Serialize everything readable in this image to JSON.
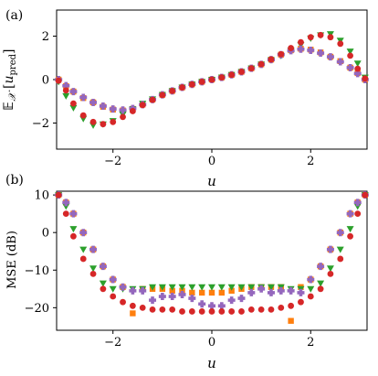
{
  "chart_data": [
    {
      "panel_label": "(a)",
      "type": "scatter",
      "xlabel": "u",
      "ylabel": "E_X [u_pred]",
      "xlim": [
        -3.14,
        3.14
      ],
      "ylim": [
        -3.2,
        3.2
      ],
      "xticks": [
        -2,
        0,
        2
      ],
      "xtick_labels": [
        "−2",
        "0",
        "2"
      ],
      "yticks": [
        -2,
        0,
        2
      ],
      "ytick_labels": [
        "−2",
        "0",
        "2"
      ],
      "grid": false,
      "legend": "none",
      "series": [
        {
          "marker": "square",
          "color": "#ff7f0e",
          "points": [
            [
              -3.1,
              0.0
            ],
            [
              -2.95,
              -0.3
            ],
            [
              -2.8,
              -0.55
            ],
            [
              -2.6,
              -0.85
            ],
            [
              -2.4,
              -1.05
            ],
            [
              -2.2,
              -1.25
            ],
            [
              -2.0,
              -1.38
            ],
            [
              -1.8,
              -1.42
            ],
            [
              -1.6,
              -1.35
            ],
            [
              -1.4,
              -1.15
            ],
            [
              -1.2,
              -0.92
            ],
            [
              -1.0,
              -0.7
            ],
            [
              -0.8,
              -0.52
            ],
            [
              -0.6,
              -0.36
            ],
            [
              -0.4,
              -0.22
            ],
            [
              -0.2,
              -0.1
            ],
            [
              0.0,
              0.0
            ],
            [
              0.2,
              0.1
            ],
            [
              0.4,
              0.22
            ],
            [
              0.6,
              0.36
            ],
            [
              0.8,
              0.52
            ],
            [
              1.0,
              0.7
            ],
            [
              1.2,
              0.92
            ],
            [
              1.4,
              1.15
            ],
            [
              1.6,
              1.35
            ],
            [
              1.8,
              1.42
            ],
            [
              2.0,
              1.38
            ],
            [
              2.2,
              1.25
            ],
            [
              2.4,
              1.05
            ],
            [
              2.6,
              0.85
            ],
            [
              2.8,
              0.55
            ],
            [
              2.95,
              0.3
            ],
            [
              3.1,
              0.0
            ]
          ]
        },
        {
          "marker": "triangle-down",
          "color": "#2ca02c",
          "points": [
            [
              -3.1,
              -0.1
            ],
            [
              -2.95,
              -0.75
            ],
            [
              -2.8,
              -1.3
            ],
            [
              -2.6,
              -1.8
            ],
            [
              -2.4,
              -2.1
            ],
            [
              -2.2,
              -2.05
            ],
            [
              -2.0,
              -1.9
            ],
            [
              -1.8,
              -1.6
            ],
            [
              -1.6,
              -1.35
            ],
            [
              -1.4,
              -1.1
            ],
            [
              -1.2,
              -0.9
            ],
            [
              -1.0,
              -0.7
            ],
            [
              -0.8,
              -0.52
            ],
            [
              -0.6,
              -0.36
            ],
            [
              -0.4,
              -0.22
            ],
            [
              -0.2,
              -0.1
            ],
            [
              0.0,
              0.0
            ],
            [
              0.2,
              0.1
            ],
            [
              0.4,
              0.22
            ],
            [
              0.6,
              0.36
            ],
            [
              0.8,
              0.52
            ],
            [
              1.0,
              0.7
            ],
            [
              1.2,
              0.9
            ],
            [
              1.4,
              1.1
            ],
            [
              1.6,
              1.35
            ],
            [
              1.8,
              1.6
            ],
            [
              2.0,
              1.9
            ],
            [
              2.2,
              2.05
            ],
            [
              2.4,
              2.1
            ],
            [
              2.6,
              1.8
            ],
            [
              2.8,
              1.3
            ],
            [
              2.95,
              0.75
            ],
            [
              3.1,
              0.1
            ]
          ]
        },
        {
          "marker": "plus",
          "color": "#9467bd",
          "points": [
            [
              -3.1,
              0.0
            ],
            [
              -2.95,
              -0.28
            ],
            [
              -2.8,
              -0.55
            ],
            [
              -2.6,
              -0.82
            ],
            [
              -2.4,
              -1.05
            ],
            [
              -2.2,
              -1.22
            ],
            [
              -2.0,
              -1.35
            ],
            [
              -1.8,
              -1.4
            ],
            [
              -1.6,
              -1.33
            ],
            [
              -1.4,
              -1.15
            ],
            [
              -1.2,
              -0.92
            ],
            [
              -1.0,
              -0.7
            ],
            [
              -0.8,
              -0.52
            ],
            [
              -0.6,
              -0.36
            ],
            [
              -0.4,
              -0.22
            ],
            [
              -0.2,
              -0.1
            ],
            [
              0.0,
              0.0
            ],
            [
              0.2,
              0.1
            ],
            [
              0.4,
              0.22
            ],
            [
              0.6,
              0.36
            ],
            [
              0.8,
              0.52
            ],
            [
              1.0,
              0.7
            ],
            [
              1.2,
              0.92
            ],
            [
              1.4,
              1.15
            ],
            [
              1.6,
              1.33
            ],
            [
              1.8,
              1.4
            ],
            [
              2.0,
              1.35
            ],
            [
              2.2,
              1.22
            ],
            [
              2.4,
              1.05
            ],
            [
              2.6,
              0.82
            ],
            [
              2.8,
              0.55
            ],
            [
              2.95,
              0.28
            ],
            [
              3.1,
              0.0
            ]
          ]
        },
        {
          "marker": "circle",
          "color": "#d62728",
          "points": [
            [
              -3.1,
              -0.05
            ],
            [
              -2.95,
              -0.5
            ],
            [
              -2.8,
              -1.1
            ],
            [
              -2.6,
              -1.65
            ],
            [
              -2.4,
              -1.95
            ],
            [
              -2.2,
              -2.05
            ],
            [
              -2.0,
              -1.95
            ],
            [
              -1.8,
              -1.72
            ],
            [
              -1.6,
              -1.45
            ],
            [
              -1.4,
              -1.17
            ],
            [
              -1.2,
              -0.93
            ],
            [
              -1.0,
              -0.71
            ],
            [
              -0.8,
              -0.52
            ],
            [
              -0.6,
              -0.36
            ],
            [
              -0.4,
              -0.22
            ],
            [
              -0.2,
              -0.1
            ],
            [
              0.0,
              0.0
            ],
            [
              0.2,
              0.1
            ],
            [
              0.4,
              0.22
            ],
            [
              0.6,
              0.36
            ],
            [
              0.8,
              0.52
            ],
            [
              1.0,
              0.71
            ],
            [
              1.2,
              0.93
            ],
            [
              1.4,
              1.17
            ],
            [
              1.6,
              1.45
            ],
            [
              1.8,
              1.72
            ],
            [
              2.0,
              1.95
            ],
            [
              2.2,
              2.05
            ],
            [
              2.4,
              1.95
            ],
            [
              2.6,
              1.65
            ],
            [
              2.8,
              1.1
            ],
            [
              2.95,
              0.5
            ],
            [
              3.1,
              0.05
            ]
          ]
        }
      ]
    },
    {
      "panel_label": "(b)",
      "type": "scatter",
      "xlabel": "u",
      "ylabel": "MSE (dB)",
      "xlim": [
        -3.14,
        3.14
      ],
      "ylim": [
        -26,
        11
      ],
      "xticks": [
        -2,
        0,
        2
      ],
      "xtick_labels": [
        "−2",
        "0",
        "2"
      ],
      "yticks": [
        10,
        0,
        -10,
        -20
      ],
      "ytick_labels": [
        "10",
        "0",
        "−10",
        "−20"
      ],
      "grid": false,
      "legend": "none",
      "series": [
        {
          "marker": "square",
          "color": "#ff7f0e",
          "points": [
            [
              -3.1,
              10
            ],
            [
              -2.95,
              8
            ],
            [
              -2.8,
              5
            ],
            [
              -2.6,
              0
            ],
            [
              -2.4,
              -4.5
            ],
            [
              -2.2,
              -9
            ],
            [
              -2.0,
              -12.5
            ],
            [
              -1.8,
              -14.5
            ],
            [
              -1.6,
              -21.5
            ],
            [
              -1.4,
              -15
            ],
            [
              -1.2,
              -15
            ],
            [
              -1.0,
              -15
            ],
            [
              -0.8,
              -15.5
            ],
            [
              -0.6,
              -15.5
            ],
            [
              -0.4,
              -16
            ],
            [
              -0.2,
              -16
            ],
            [
              0.0,
              -16
            ],
            [
              0.2,
              -16
            ],
            [
              0.4,
              -15.5
            ],
            [
              0.6,
              -15
            ],
            [
              0.8,
              -14.5
            ],
            [
              1.0,
              -14.5
            ],
            [
              1.2,
              -14.5
            ],
            [
              1.4,
              -14.5
            ],
            [
              1.6,
              -23.5
            ],
            [
              1.8,
              -14.5
            ],
            [
              2.0,
              -12.5
            ],
            [
              2.2,
              -9
            ],
            [
              2.4,
              -4.5
            ],
            [
              2.6,
              0
            ],
            [
              2.8,
              5
            ],
            [
              2.95,
              8
            ],
            [
              3.1,
              10
            ]
          ]
        },
        {
          "marker": "triangle-down",
          "color": "#2ca02c",
          "points": [
            [
              -3.1,
              10
            ],
            [
              -2.95,
              7
            ],
            [
              -2.8,
              1
            ],
            [
              -2.6,
              -4.5
            ],
            [
              -2.4,
              -9.5
            ],
            [
              -2.2,
              -13.5
            ],
            [
              -2.0,
              -15
            ],
            [
              -1.8,
              -15
            ],
            [
              -1.6,
              -15
            ],
            [
              -1.4,
              -15
            ],
            [
              -1.2,
              -14.5
            ],
            [
              -1.0,
              -14.5
            ],
            [
              -0.8,
              -14.5
            ],
            [
              -0.6,
              -14.5
            ],
            [
              -0.4,
              -14.5
            ],
            [
              -0.2,
              -14.5
            ],
            [
              0.0,
              -14.5
            ],
            [
              0.2,
              -14.5
            ],
            [
              0.4,
              -14.5
            ],
            [
              0.6,
              -14.5
            ],
            [
              0.8,
              -14.5
            ],
            [
              1.0,
              -14.5
            ],
            [
              1.2,
              -14.5
            ],
            [
              1.4,
              -14.5
            ],
            [
              1.6,
              -15
            ],
            [
              1.8,
              -15
            ],
            [
              2.0,
              -15
            ],
            [
              2.2,
              -13.5
            ],
            [
              2.4,
              -9.5
            ],
            [
              2.6,
              -4.5
            ],
            [
              2.8,
              1
            ],
            [
              2.95,
              7
            ],
            [
              3.1,
              10
            ]
          ]
        },
        {
          "marker": "plus",
          "color": "#9467bd",
          "points": [
            [
              -3.1,
              10
            ],
            [
              -2.95,
              8
            ],
            [
              -2.8,
              5
            ],
            [
              -2.6,
              0
            ],
            [
              -2.4,
              -4.5
            ],
            [
              -2.2,
              -9
            ],
            [
              -2.0,
              -12.5
            ],
            [
              -1.8,
              -14.5
            ],
            [
              -1.6,
              -15.5
            ],
            [
              -1.4,
              -15.5
            ],
            [
              -1.2,
              -18
            ],
            [
              -1.0,
              -17
            ],
            [
              -0.8,
              -17
            ],
            [
              -0.6,
              -16.5
            ],
            [
              -0.4,
              -17.5
            ],
            [
              -0.2,
              -19
            ],
            [
              0.0,
              -19.5
            ],
            [
              0.2,
              -19.5
            ],
            [
              0.4,
              -18
            ],
            [
              0.6,
              -17.5
            ],
            [
              0.8,
              -16
            ],
            [
              1.0,
              -15
            ],
            [
              1.2,
              -16
            ],
            [
              1.4,
              -15.5
            ],
            [
              1.6,
              -15.5
            ],
            [
              1.8,
              -16
            ],
            [
              2.0,
              -12.5
            ],
            [
              2.2,
              -9
            ],
            [
              2.4,
              -4.5
            ],
            [
              2.6,
              0
            ],
            [
              2.8,
              5
            ],
            [
              2.95,
              8
            ],
            [
              3.1,
              10
            ]
          ]
        },
        {
          "marker": "circle",
          "color": "#d62728",
          "points": [
            [
              -3.1,
              10
            ],
            [
              -2.95,
              5
            ],
            [
              -2.8,
              -1
            ],
            [
              -2.6,
              -7
            ],
            [
              -2.4,
              -11
            ],
            [
              -2.2,
              -15
            ],
            [
              -2.0,
              -17
            ],
            [
              -1.8,
              -18.5
            ],
            [
              -1.6,
              -19.5
            ],
            [
              -1.4,
              -20
            ],
            [
              -1.2,
              -20.5
            ],
            [
              -1.0,
              -20.5
            ],
            [
              -0.8,
              -20.5
            ],
            [
              -0.6,
              -21
            ],
            [
              -0.4,
              -21
            ],
            [
              -0.2,
              -21
            ],
            [
              0.0,
              -21
            ],
            [
              0.2,
              -21
            ],
            [
              0.4,
              -21
            ],
            [
              0.6,
              -21
            ],
            [
              0.8,
              -20.5
            ],
            [
              1.0,
              -20.5
            ],
            [
              1.2,
              -20.5
            ],
            [
              1.4,
              -20
            ],
            [
              1.6,
              -19.5
            ],
            [
              1.8,
              -18.5
            ],
            [
              2.0,
              -17
            ],
            [
              2.2,
              -15
            ],
            [
              2.4,
              -11
            ],
            [
              2.6,
              -7
            ],
            [
              2.8,
              -1
            ],
            [
              2.95,
              5
            ],
            [
              3.1,
              10
            ]
          ]
        }
      ]
    }
  ]
}
